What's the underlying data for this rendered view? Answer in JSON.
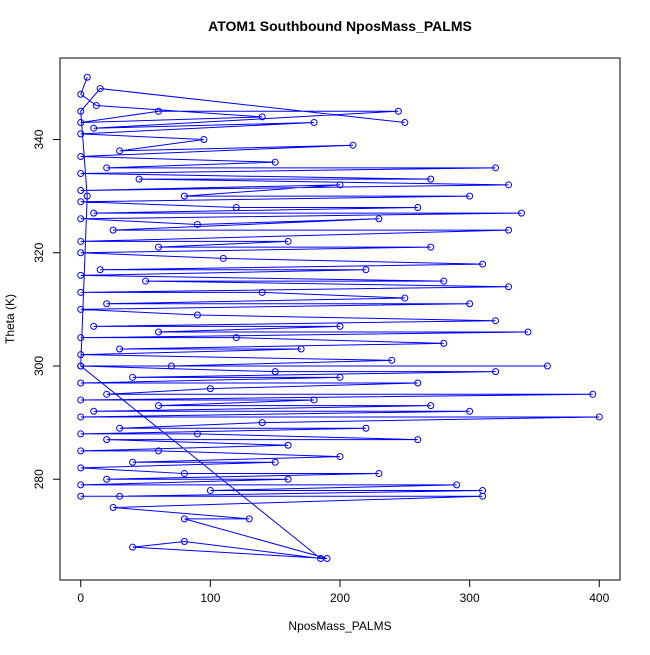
{
  "chart_data": {
    "type": "line",
    "title": "ATOM1 Southbound NposMass_PALMS",
    "xlabel": "NposMass_PALMS",
    "ylabel": "Theta (K)",
    "color": "#0000ff",
    "marker": "circle",
    "x": [
      5,
      0,
      12,
      140,
      0,
      60,
      245,
      10,
      180,
      0,
      95,
      30,
      210,
      0,
      150,
      20,
      320,
      0,
      270,
      45,
      330,
      0,
      200,
      80,
      300,
      0,
      120,
      260,
      10,
      340,
      0,
      90,
      230,
      25,
      330,
      0,
      160,
      60,
      270,
      0,
      110,
      310,
      15,
      220,
      0,
      280,
      50,
      330,
      0,
      140,
      250,
      20,
      300,
      0,
      90,
      320,
      10,
      200,
      60,
      345,
      0,
      120,
      280,
      30,
      170,
      0,
      240,
      70,
      360,
      0,
      150,
      320,
      40,
      200,
      0,
      260,
      100,
      20,
      395,
      0,
      180,
      60,
      270,
      10,
      300,
      0,
      400,
      140,
      30,
      220,
      0,
      90,
      260,
      20,
      160,
      0,
      60,
      200,
      40,
      150,
      0,
      80,
      230,
      20,
      160,
      0,
      290,
      100,
      310,
      30,
      0,
      310,
      25,
      130,
      80,
      190,
      40,
      80,
      185,
      0,
      5,
      0,
      15,
      250
    ],
    "values": [
      351,
      348,
      346,
      344,
      343,
      345,
      345,
      342,
      343,
      341,
      340,
      338,
      339,
      337,
      336,
      335,
      335,
      334,
      333,
      333,
      332,
      331,
      332,
      330,
      330,
      329,
      328,
      328,
      327,
      327,
      326,
      325,
      326,
      324,
      324,
      322,
      322,
      321,
      321,
      320,
      319,
      318,
      317,
      317,
      316,
      315,
      315,
      314,
      313,
      313,
      312,
      311,
      311,
      310,
      309,
      308,
      307,
      307,
      306,
      306,
      305,
      305,
      304,
      303,
      303,
      302,
      301,
      300,
      300,
      300,
      299,
      299,
      298,
      298,
      297,
      297,
      296,
      295,
      295,
      294,
      294,
      293,
      293,
      292,
      292,
      291,
      291,
      290,
      289,
      289,
      288,
      288,
      287,
      287,
      286,
      285,
      285,
      284,
      283,
      283,
      282,
      281,
      281,
      280,
      280,
      279,
      279,
      278,
      278,
      277,
      277,
      277,
      275,
      273,
      273,
      266,
      268,
      269,
      266,
      300,
      330,
      345,
      349,
      343
    ],
    "xlim": [
      -16,
      416
    ],
    "ylim": [
      262.2,
      354.4
    ],
    "xticks": [
      0,
      100,
      200,
      300,
      400
    ],
    "yticks": [
      280,
      300,
      320,
      340
    ]
  }
}
